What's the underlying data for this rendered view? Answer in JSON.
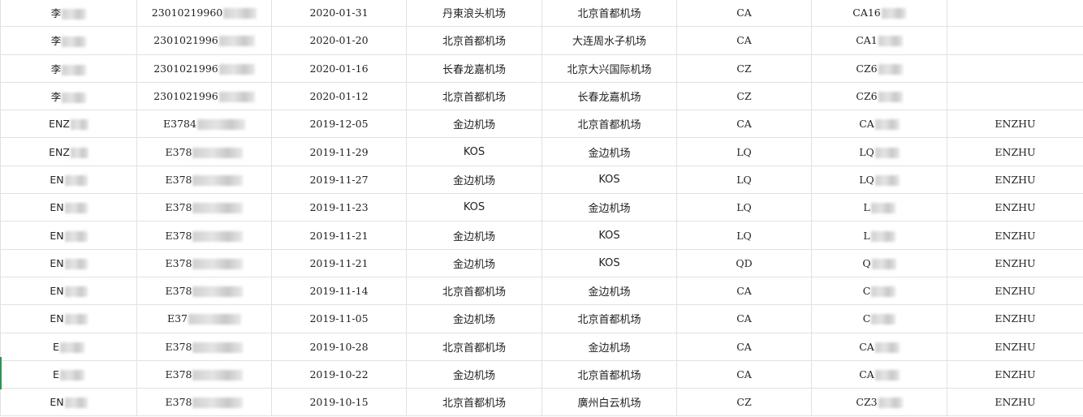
{
  "rows": [
    {
      "name": "李",
      "id": "23010219960",
      "date": "2020-01-31",
      "from": "丹東浪头机场",
      "to": "北京首都机场",
      "airline": "CA",
      "flight": "CA16",
      "pinyin": ""
    },
    {
      "name": "李",
      "id": "2301021996",
      "date": "2020-01-20",
      "from": "北京首都机场",
      "to": "大连周水子机场",
      "airline": "CA",
      "flight": "CA1",
      "pinyin": ""
    },
    {
      "name": "李",
      "id": "2301021996",
      "date": "2020-01-16",
      "from": "长春龙嘉机场",
      "to": "北京大兴国际机场",
      "airline": "CZ",
      "flight": "CZ6",
      "pinyin": ""
    },
    {
      "name": "李",
      "id": "2301021996",
      "date": "2020-01-12",
      "from": "北京首都机场",
      "to": "长春龙嘉机场",
      "airline": "CZ",
      "flight": "CZ6",
      "pinyin": ""
    },
    {
      "name": "ENZ",
      "id": "E3784",
      "date": "2019-12-05",
      "from": "金边机场",
      "to": "北京首都机场",
      "airline": "CA",
      "flight": "CA",
      "pinyin": "ENZHU"
    },
    {
      "name": "ENZ",
      "id": "E378",
      "date": "2019-11-29",
      "from": "KOS",
      "to": "金边机场",
      "airline": "LQ",
      "flight": "LQ",
      "pinyin": "ENZHU"
    },
    {
      "name": "EN",
      "id": "E378",
      "date": "2019-11-27",
      "from": "金边机场",
      "to": "KOS",
      "airline": "LQ",
      "flight": "LQ",
      "pinyin": "ENZHU"
    },
    {
      "name": "EN",
      "id": "E378",
      "date": "2019-11-23",
      "from": "KOS",
      "to": "金边机场",
      "airline": "LQ",
      "flight": "L",
      "pinyin": "ENZHU"
    },
    {
      "name": "EN",
      "id": "E378",
      "date": "2019-11-21",
      "from": "金边机场",
      "to": "KOS",
      "airline": "LQ",
      "flight": "L",
      "pinyin": "ENZHU"
    },
    {
      "name": "EN",
      "id": "E378",
      "date": "2019-11-21",
      "from": "金边机场",
      "to": "KOS",
      "airline": "QD",
      "flight": "Q",
      "pinyin": "ENZHU"
    },
    {
      "name": "EN",
      "id": "E378",
      "date": "2019-11-14",
      "from": "北京首都机场",
      "to": "金边机场",
      "airline": "CA",
      "flight": "C",
      "pinyin": "ENZHU"
    },
    {
      "name": "EN",
      "id": "E37",
      "date": "2019-11-05",
      "from": "金边机场",
      "to": "北京首都机场",
      "airline": "CA",
      "flight": "C",
      "pinyin": "ENZHU"
    },
    {
      "name": "E",
      "id": "E378",
      "date": "2019-10-28",
      "from": "北京首都机场",
      "to": "金边机场",
      "airline": "CA",
      "flight": "CA",
      "pinyin": "ENZHU"
    },
    {
      "name": "E",
      "id": "E378",
      "date": "2019-10-22",
      "from": "金边机场",
      "to": "北京首都机场",
      "airline": "CA",
      "flight": "CA",
      "pinyin": "ENZHU"
    },
    {
      "name": "EN",
      "id": "E378",
      "date": "2019-10-15",
      "from": "北京首都机场",
      "to": "廣州白云机场",
      "airline": "CZ",
      "flight": "CZ3",
      "pinyin": "ENZHU"
    }
  ]
}
